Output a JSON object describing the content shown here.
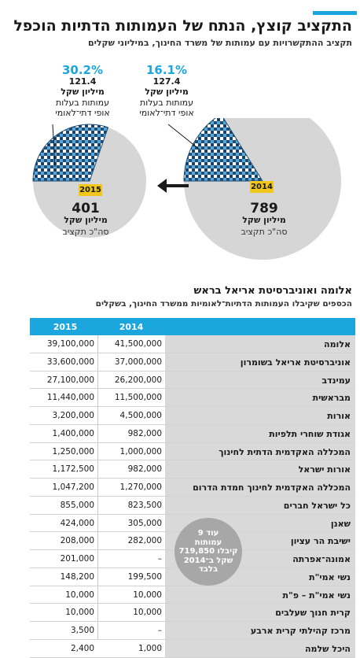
{
  "header": {
    "title": "התקציב קוצץ, הנתח של העמותות הדתיות הוכפל",
    "subtitle": "תקציב ההתקשרויות עם עמותות של משרד החינוך, במיליוני שקלים",
    "accent_color": "#1ba6de"
  },
  "pies": {
    "y2014": {
      "year": "2014",
      "percent": "16.1%",
      "share_amount": "127.4",
      "share_unit": "מיליון שקל",
      "share_desc_1": "עמותות בעלות",
      "share_desc_2": "אופי דתי־לאומי",
      "total": "789",
      "total_unit": "מיליון שקל",
      "total_desc": "סה\"כ תקציב"
    },
    "y2015": {
      "year": "2015",
      "percent": "30.2%",
      "share_amount": "121.4",
      "share_unit": "מיליון שקל",
      "share_desc_1": "עמותות בעלות",
      "share_desc_2": "אופי דתי־לאומי",
      "total": "401",
      "total_unit": "מיליון שקל",
      "total_desc": "סה\"כ תקציב"
    },
    "arrow_icon": "arrow-left-icon",
    "pie_color": "#d6d6d6",
    "share_color": "#1f4e79"
  },
  "table": {
    "title": "אלומה ואוניברסיטת אריאל בראש",
    "subtitle": "הכספים שקיבלו העמותות הדתיות־לאומיות ממשרד החינוך, בשקלים",
    "col_2015": "2015",
    "col_2014": "2014",
    "rows": [
      {
        "name": "אלומה",
        "v2014": "41,500,000",
        "v2015": "39,100,000"
      },
      {
        "name": "אוניברסיטת אריאל בשומרון",
        "v2014": "37,000,000",
        "v2015": "33,600,000"
      },
      {
        "name": "עמינדב",
        "v2014": "26,200,000",
        "v2015": "27,100,000"
      },
      {
        "name": "מבראשית",
        "v2014": "11,500,000",
        "v2015": "11,440,000"
      },
      {
        "name": "אורות",
        "v2014": "4,500,000",
        "v2015": "3,200,000"
      },
      {
        "name": "אגודת שוחרי תלפיות",
        "v2014": "982,000",
        "v2015": "1,400,000"
      },
      {
        "name": "המכללה האקדמית הדתית לחינוך",
        "v2014": "1,000,000",
        "v2015": "1,250,000"
      },
      {
        "name": "אורות ישראל",
        "v2014": "982,000",
        "v2015": "1,172,500"
      },
      {
        "name": "המכללה האקדמית לחינוך חמדת הדרום",
        "v2014": "1,270,000",
        "v2015": "1,047,200"
      },
      {
        "name": "כל ישראל חברים",
        "v2014": "823,500",
        "v2015": "855,000"
      },
      {
        "name": "שאנן",
        "v2014": "305,000",
        "v2015": "424,000"
      },
      {
        "name": "ישיבת הר עציון",
        "v2014": "282,000",
        "v2015": "208,000"
      },
      {
        "name": "אמונה־אפרתה",
        "v2014": "–",
        "v2015": "201,000"
      },
      {
        "name": "נשי אמי\"ת",
        "v2014": "199,500",
        "v2015": "148,200"
      },
      {
        "name": "נשי אמי\"ת – פ\"ת",
        "v2014": "10,000",
        "v2015": "10,000"
      },
      {
        "name": "קרית חנוך שעלבים",
        "v2014": "10,000",
        "v2015": "10,000"
      },
      {
        "name": "מרכז קהילתי קרית ארבע",
        "v2014": "–",
        "v2015": "3,500"
      },
      {
        "name": "היכל שלמה",
        "v2014": "1,000",
        "v2015": "2,400"
      }
    ],
    "note": {
      "line1": "עוד 9",
      "line2": "עמותות",
      "line3": "קיבלו 719,850",
      "line4": "שקל ב־2014",
      "line5": "בלבד"
    }
  },
  "chart_data": [
    {
      "type": "pie",
      "title": "2014",
      "categories": [
        "עמותות בעלות אופי דתי־לאומי",
        "other"
      ],
      "values": [
        127.4,
        661.6
      ],
      "total": 789,
      "share_percent": 16.1
    },
    {
      "type": "pie",
      "title": "2015",
      "categories": [
        "עמותות בעלות אופי דתי־לאומי",
        "other"
      ],
      "values": [
        121.4,
        279.6
      ],
      "total": 401,
      "share_percent": 30.2
    },
    {
      "type": "table",
      "title": "אלומה ואוניברסיטת אריאל בראש",
      "columns": [
        "2015",
        "2014"
      ],
      "rows": [
        [
          "אלומה",
          39100000,
          41500000
        ],
        [
          "אוניברסיטת אריאל בשומרון",
          33600000,
          37000000
        ],
        [
          "עמינדב",
          27100000,
          26200000
        ],
        [
          "מבראשית",
          11440000,
          11500000
        ],
        [
          "אורות",
          3200000,
          4500000
        ],
        [
          "אגודת שוחרי תלפיות",
          1400000,
          982000
        ],
        [
          "המכללה האקדמית הדתית לחינוך",
          1250000,
          1000000
        ],
        [
          "אורות ישראל",
          1172500,
          982000
        ],
        [
          "המכללה האקדמית לחינוך חמדת הדרום",
          1047200,
          1270000
        ],
        [
          "כל ישראל חברים",
          855000,
          823500
        ],
        [
          "שאנן",
          424000,
          305000
        ],
        [
          "ישיבת הר עציון",
          208000,
          282000
        ],
        [
          "אמונה־אפרתה",
          201000,
          null
        ],
        [
          "נשי אמי\"ת",
          148200,
          199500
        ],
        [
          "נשי אמי\"ת – פ\"ת",
          10000,
          10000
        ],
        [
          "קרית חנוך שעלבים",
          10000,
          10000
        ],
        [
          "מרכז קהילתי קרית ארבע",
          3500,
          null
        ],
        [
          "היכל שלמה",
          2400,
          1000
        ]
      ]
    }
  ]
}
